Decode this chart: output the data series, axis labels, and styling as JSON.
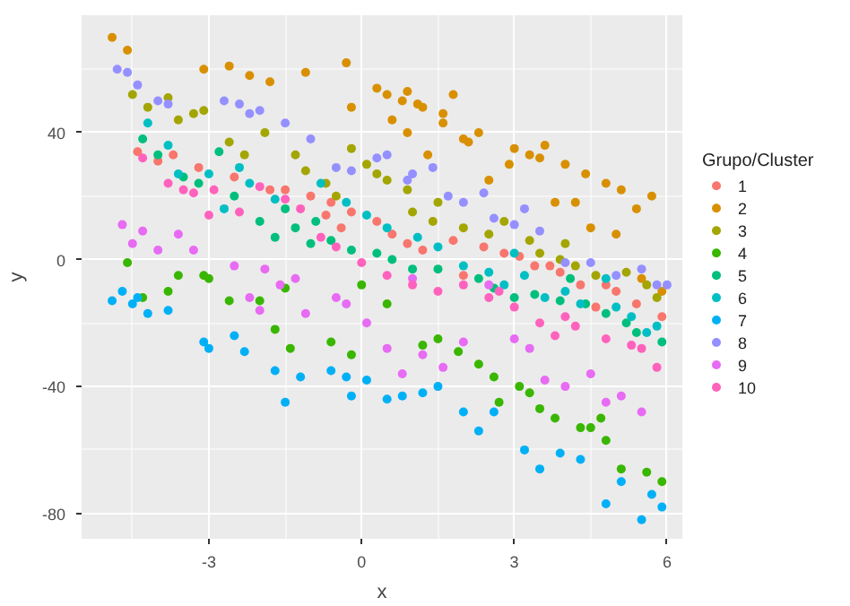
{
  "chart_data": {
    "type": "scatter",
    "xlabel": "x",
    "ylabel": "y",
    "legend_title": "Grupo/Cluster",
    "legend": "right",
    "grid": true,
    "marker": "circle",
    "xlim": [
      -5.5,
      6.3
    ],
    "ylim": [
      -88,
      77
    ],
    "xticks": [
      -3,
      0,
      3,
      6
    ],
    "yticks": [
      -80,
      -40,
      0,
      40
    ],
    "series": [
      {
        "name": "1",
        "color": "#f8766d",
        "x": [
          -4.4,
          -4.0,
          -3.7,
          -3.2,
          -2.5,
          -1.8,
          -1.5,
          -1.0,
          -0.6,
          -0.2,
          0.3,
          0.6,
          0.9,
          1.2,
          1.8,
          2.4,
          2.8,
          3.1,
          3.4,
          3.9,
          4.3,
          4.8,
          5.0,
          5.4,
          5.9,
          -0.7,
          -0.4,
          2.0,
          3.7,
          4.6
        ],
        "values": [
          34,
          31,
          33,
          29,
          26,
          22,
          22,
          20,
          18,
          15,
          12,
          8,
          5,
          3,
          6,
          4,
          2,
          1,
          -2,
          -4,
          -8,
          -8,
          -10,
          -14,
          -18,
          14,
          10,
          -5,
          -2,
          -15
        ]
      },
      {
        "name": "2",
        "color": "#d89000",
        "x": [
          -4.9,
          -4.6,
          -3.1,
          -2.6,
          -2.2,
          -1.8,
          -1.1,
          -0.3,
          0.3,
          0.5,
          -0.2,
          0.8,
          0.9,
          1.1,
          1.2,
          1.6,
          1.8,
          0.6,
          1.6,
          2.0,
          2.1,
          2.3,
          2.9,
          3.0,
          3.3,
          3.5,
          3.6,
          4.0,
          4.4,
          4.8,
          5.1,
          4.2,
          3.8,
          5.4,
          5.7,
          4.5,
          5.0,
          5.5,
          5.9,
          2.5,
          1.3,
          0.9
        ],
        "values": [
          70,
          66,
          60,
          61,
          58,
          56,
          59,
          62,
          54,
          52,
          48,
          50,
          53,
          49,
          48,
          46,
          52,
          44,
          43,
          38,
          37,
          40,
          30,
          35,
          33,
          32,
          36,
          30,
          27,
          24,
          22,
          18,
          18,
          16,
          20,
          10,
          8,
          -6,
          -10,
          25,
          33,
          40
        ]
      },
      {
        "name": "3",
        "color": "#a3a500",
        "x": [
          -4.5,
          -4.2,
          -3.8,
          -3.6,
          -3.3,
          -3.1,
          -2.6,
          -1.9,
          -1.3,
          -1.1,
          -0.7,
          -0.5,
          0.3,
          0.5,
          0.9,
          1.0,
          1.5,
          1.4,
          2.0,
          2.5,
          3.3,
          3.5,
          3.9,
          4.2,
          4.6,
          5.2,
          5.6,
          5.8,
          4.0,
          2.8,
          0.1,
          -0.2,
          -2.3
        ],
        "values": [
          52,
          48,
          51,
          44,
          46,
          47,
          37,
          40,
          33,
          28,
          24,
          20,
          27,
          25,
          22,
          15,
          18,
          12,
          10,
          8,
          6,
          2,
          0,
          -2,
          -5,
          -4,
          -8,
          -12,
          5,
          12,
          30,
          35,
          33
        ]
      },
      {
        "name": "4",
        "color": "#39b600",
        "x": [
          -4.6,
          -4.3,
          -3.8,
          -3.6,
          -3.1,
          -3.0,
          -2.6,
          -2.0,
          -1.7,
          -1.5,
          -1.4,
          -0.6,
          -0.2,
          0.0,
          0.5,
          1.2,
          1.5,
          1.9,
          2.3,
          2.6,
          3.1,
          3.3,
          3.5,
          3.8,
          4.3,
          4.5,
          4.8,
          5.1,
          5.6,
          5.9,
          2.7,
          4.7
        ],
        "values": [
          -1,
          -12,
          -10,
          -5,
          -5,
          -6,
          -13,
          -13,
          -22,
          -9,
          -28,
          -26,
          -30,
          -8,
          -14,
          -27,
          -25,
          -29,
          -33,
          -37,
          -40,
          -42,
          -47,
          -50,
          -53,
          -53,
          -57,
          -66,
          -67,
          -70,
          -45,
          -50
        ]
      },
      {
        "name": "5",
        "color": "#00bf7d",
        "x": [
          -4.3,
          -4.0,
          -3.5,
          -3.2,
          -2.8,
          -2.5,
          -2.0,
          -1.7,
          -1.3,
          -0.9,
          -0.6,
          -0.2,
          0.3,
          0.6,
          1.0,
          1.5,
          2.3,
          2.6,
          3.0,
          3.4,
          3.9,
          4.4,
          4.8,
          5.2,
          5.4,
          5.9,
          -1.5,
          -1.0,
          4.1
        ],
        "values": [
          38,
          33,
          26,
          24,
          34,
          20,
          12,
          7,
          10,
          12,
          6,
          3,
          2,
          0,
          -3,
          -3,
          -6,
          -9,
          -12,
          -11,
          -13,
          -14,
          -17,
          -20,
          -23,
          -26,
          16,
          5,
          -6
        ]
      },
      {
        "name": "6",
        "color": "#00bfc4",
        "x": [
          -4.2,
          -3.8,
          -3.6,
          -3.0,
          -2.4,
          -2.2,
          -1.7,
          -0.8,
          -0.3,
          0.1,
          0.5,
          1.1,
          1.5,
          2.0,
          2.5,
          2.8,
          3.2,
          3.6,
          4.0,
          4.3,
          4.8,
          5.0,
          5.3,
          5.6,
          5.8,
          -2.7,
          3.0
        ],
        "values": [
          43,
          36,
          27,
          27,
          29,
          24,
          19,
          24,
          18,
          14,
          10,
          7,
          4,
          -2,
          -4,
          -8,
          -5,
          -12,
          -10,
          -14,
          -6,
          -15,
          -18,
          -23,
          -21,
          16,
          2
        ]
      },
      {
        "name": "7",
        "color": "#00b0f6",
        "x": [
          -4.9,
          -4.7,
          -4.5,
          -4.4,
          -4.2,
          -3.8,
          -3.1,
          -3.0,
          -2.5,
          -2.3,
          -1.7,
          -1.5,
          -1.2,
          -0.6,
          -0.3,
          -0.2,
          0.1,
          0.5,
          0.8,
          1.2,
          1.5,
          2.0,
          2.3,
          2.6,
          3.2,
          3.5,
          3.9,
          4.3,
          4.8,
          5.1,
          5.5,
          5.7,
          5.9
        ],
        "values": [
          -13,
          -10,
          -14,
          -12,
          -17,
          -16,
          -26,
          -28,
          -24,
          -29,
          -35,
          -45,
          -37,
          -35,
          -37,
          -43,
          -38,
          -44,
          -43,
          -42,
          -40,
          -48,
          -54,
          -48,
          -60,
          -66,
          -61,
          -63,
          -77,
          -70,
          -82,
          -74,
          -78
        ]
      },
      {
        "name": "8",
        "color": "#9590ff",
        "x": [
          -4.8,
          -4.6,
          -4.4,
          -4.0,
          -3.8,
          -2.7,
          -2.4,
          -2.2,
          -2.0,
          -1.5,
          -1.0,
          -0.5,
          -0.2,
          0.3,
          0.5,
          0.9,
          1.0,
          1.4,
          1.7,
          2.0,
          2.4,
          2.6,
          3.0,
          3.5,
          4.0,
          4.5,
          5.0,
          5.5,
          5.8,
          6.0,
          3.2
        ],
        "values": [
          60,
          59,
          55,
          50,
          49,
          50,
          49,
          46,
          47,
          43,
          38,
          29,
          28,
          32,
          33,
          25,
          27,
          29,
          20,
          18,
          21,
          13,
          11,
          9,
          -1,
          -1,
          -5,
          -3,
          -8,
          -8,
          16
        ]
      },
      {
        "name": "9",
        "color": "#e76bf3",
        "x": [
          -4.7,
          -4.5,
          -4.3,
          -4.0,
          -3.6,
          -3.3,
          -2.5,
          -2.2,
          -1.9,
          -1.6,
          -1.3,
          -1.1,
          -0.5,
          -0.3,
          0.1,
          0.5,
          0.8,
          1.2,
          1.6,
          2.0,
          2.5,
          3.0,
          3.3,
          3.6,
          4.0,
          4.5,
          4.8,
          5.1,
          5.5,
          -2.0,
          1.0
        ],
        "values": [
          11,
          5,
          9,
          3,
          8,
          3,
          -2,
          -12,
          -3,
          -8,
          -6,
          -17,
          -12,
          -14,
          -20,
          -28,
          -36,
          -30,
          -34,
          -26,
          -8,
          -25,
          -28,
          -38,
          -40,
          -36,
          -45,
          -43,
          -48,
          -16,
          -6
        ]
      },
      {
        "name": "10",
        "color": "#ff62bc",
        "x": [
          -4.3,
          -3.8,
          -3.5,
          -3.3,
          -2.9,
          -2.4,
          -2.0,
          -1.5,
          -1.2,
          -0.8,
          -0.5,
          0.0,
          0.5,
          1.0,
          1.5,
          2.0,
          2.5,
          3.0,
          3.5,
          4.0,
          4.2,
          4.8,
          5.3,
          5.5,
          5.8,
          -3.0,
          3.8,
          2.7
        ],
        "values": [
          32,
          24,
          22,
          21,
          22,
          15,
          23,
          19,
          16,
          7,
          4,
          -1,
          -5,
          -8,
          -10,
          -8,
          -12,
          -15,
          -20,
          -18,
          -21,
          -25,
          -27,
          -28,
          -34,
          14,
          -24,
          -10
        ]
      }
    ]
  }
}
